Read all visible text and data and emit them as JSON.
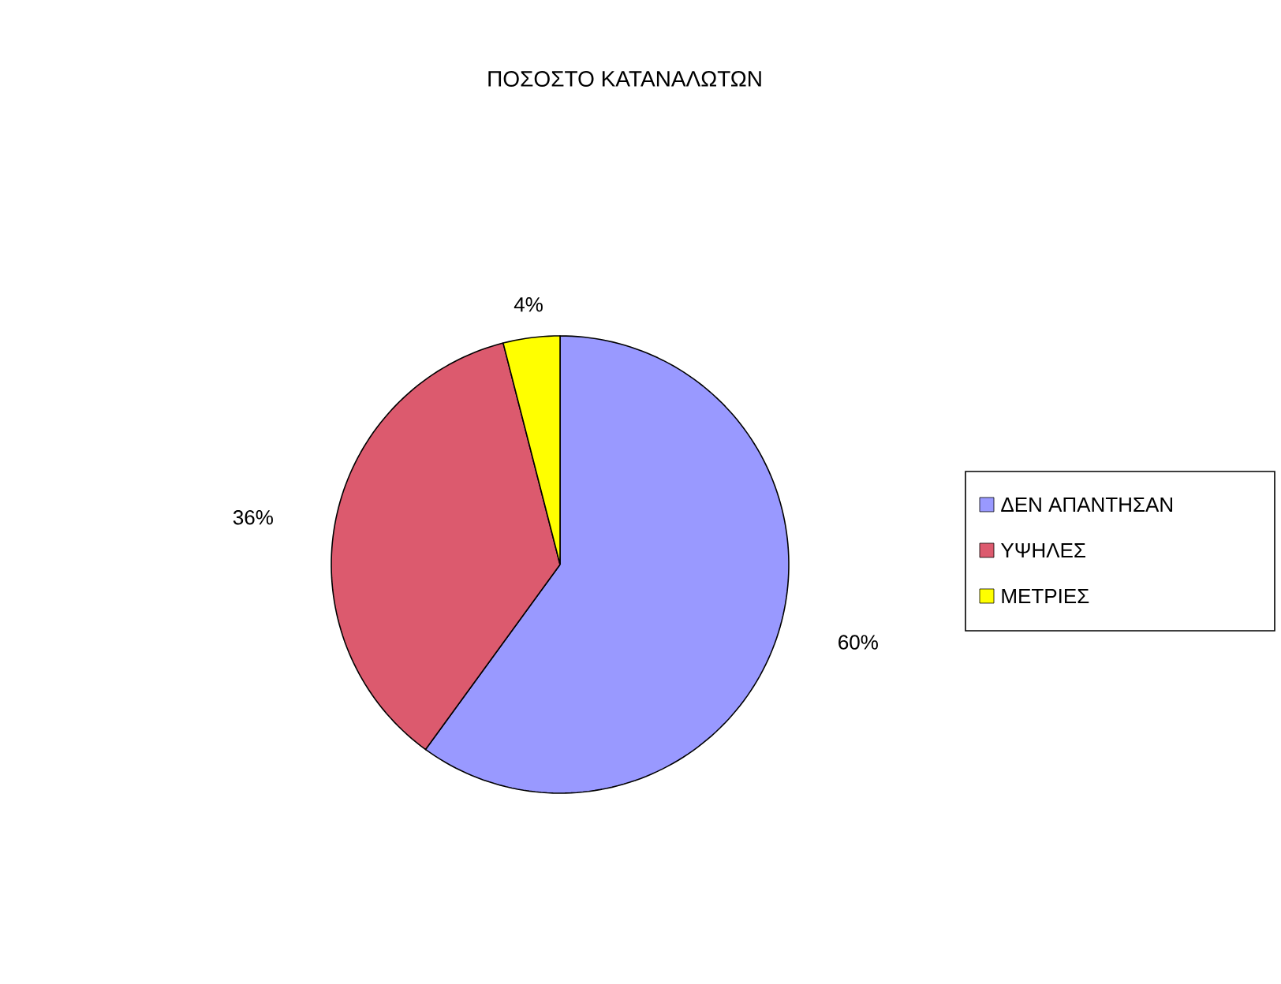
{
  "chart_data": {
    "type": "pie",
    "title": "ΠΟΣΟΣΤΟ ΚΑΤΑΝΑΛΩΤΩΝ",
    "categories": [
      "ΔΕΝ ΑΠΑΝΤΗΣΑΝ",
      "ΥΨΗΛΕΣ",
      "ΜΕΤΡΙΕΣ"
    ],
    "values": [
      60,
      36,
      4
    ],
    "colors": [
      "#9999ff",
      "#dc5a6e",
      "#ffff00"
    ],
    "value_labels": [
      "60%",
      "36%",
      "4%"
    ],
    "legend": "right"
  }
}
